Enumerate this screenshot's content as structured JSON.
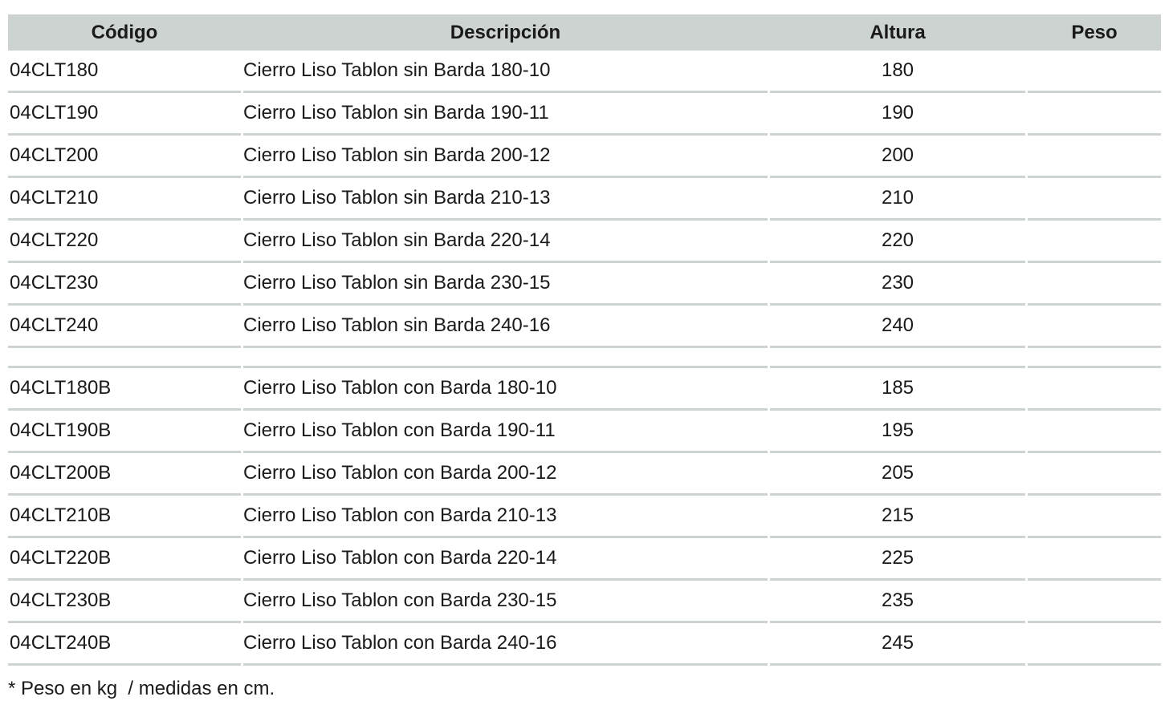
{
  "colors": {
    "header_bg": "#ccd3d1",
    "divider": "#ccd3d1",
    "text": "#1a1a1a"
  },
  "table": {
    "columns": [
      {
        "key": "codigo",
        "label": "Código"
      },
      {
        "key": "descripcion",
        "label": "Descripción"
      },
      {
        "key": "altura",
        "label": "Altura"
      },
      {
        "key": "peso",
        "label": "Peso"
      }
    ],
    "groups": [
      {
        "name": "sin-barda",
        "rows": [
          {
            "codigo": "04CLT180",
            "descripcion": "Cierro Liso Tablon sin Barda 180-10",
            "altura": "180",
            "peso": ""
          },
          {
            "codigo": "04CLT190",
            "descripcion": "Cierro Liso Tablon sin Barda 190-11",
            "altura": "190",
            "peso": ""
          },
          {
            "codigo": "04CLT200",
            "descripcion": "Cierro Liso Tablon sin Barda 200-12",
            "altura": "200",
            "peso": ""
          },
          {
            "codigo": "04CLT210",
            "descripcion": "Cierro Liso Tablon sin Barda 210-13",
            "altura": "210",
            "peso": ""
          },
          {
            "codigo": "04CLT220",
            "descripcion": "Cierro Liso Tablon sin Barda 220-14",
            "altura": "220",
            "peso": ""
          },
          {
            "codigo": "04CLT230",
            "descripcion": "Cierro Liso Tablon sin Barda 230-15",
            "altura": "230",
            "peso": ""
          },
          {
            "codigo": "04CLT240",
            "descripcion": "Cierro Liso Tablon sin Barda 240-16",
            "altura": "240",
            "peso": ""
          }
        ]
      },
      {
        "name": "con-barda",
        "rows": [
          {
            "codigo": "04CLT180B",
            "descripcion": "Cierro Liso Tablon con Barda 180-10",
            "altura": "185",
            "peso": ""
          },
          {
            "codigo": "04CLT190B",
            "descripcion": "Cierro Liso Tablon con Barda 190-11",
            "altura": "195",
            "peso": ""
          },
          {
            "codigo": "04CLT200B",
            "descripcion": "Cierro Liso Tablon con Barda 200-12",
            "altura": "205",
            "peso": ""
          },
          {
            "codigo": "04CLT210B",
            "descripcion": "Cierro Liso Tablon con Barda 210-13",
            "altura": "215",
            "peso": ""
          },
          {
            "codigo": "04CLT220B",
            "descripcion": "Cierro Liso Tablon con Barda 220-14",
            "altura": "225",
            "peso": ""
          },
          {
            "codigo": "04CLT230B",
            "descripcion": "Cierro Liso Tablon con Barda 230-15",
            "altura": "235",
            "peso": ""
          },
          {
            "codigo": "04CLT240B",
            "descripcion": "Cierro Liso Tablon con Barda 240-16",
            "altura": "245",
            "peso": ""
          }
        ]
      }
    ],
    "footnote": "* Peso en kg  / medidas en cm."
  }
}
